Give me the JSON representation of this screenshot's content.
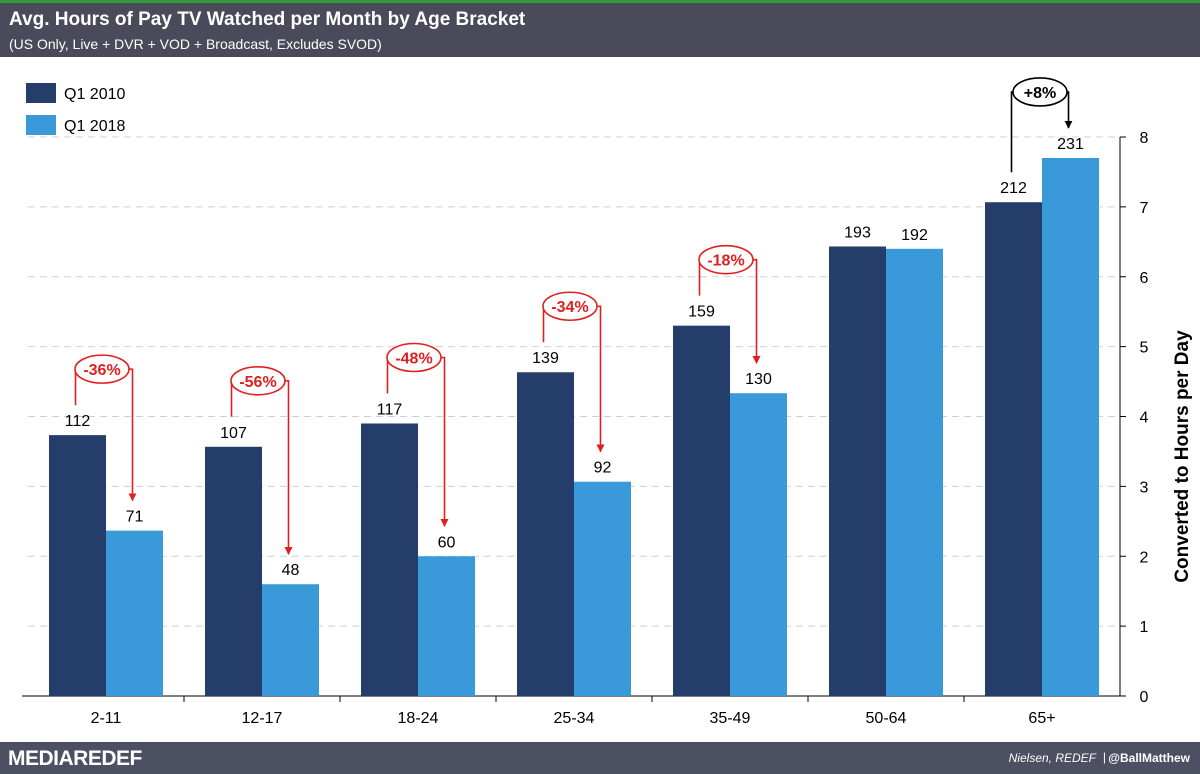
{
  "header": {
    "title": "Avg. Hours of Pay TV Watched per Month by Age Bracket",
    "subtitle": "(US Only, Live + DVR + VOD + Broadcast, Excludes SVOD)"
  },
  "footer": {
    "logo_part1": "MEDIA",
    "logo_part2": "REDEF",
    "source": "Nielsen, REDEF",
    "separator": "|",
    "handle": "@BallMatthew"
  },
  "chart_data": {
    "type": "bar",
    "title": "Avg. Hours of Pay TV Watched per Month by Age Bracket",
    "subtitle": "(US Only, Live + DVR + VOD + Broadcast, Excludes SVOD)",
    "categories": [
      "2-11",
      "12-17",
      "18-24",
      "25-34",
      "35-49",
      "50-64",
      "65+"
    ],
    "series": [
      {
        "name": "Q1 2010",
        "values": [
          112,
          107,
          117,
          139,
          159,
          193,
          212
        ],
        "color": "#243d6b"
      },
      {
        "name": "Q1 2018",
        "values": [
          71,
          48,
          60,
          92,
          130,
          192,
          231
        ],
        "color": "#3a9ad9"
      }
    ],
    "y2label": "Converted to Hours per Day",
    "y2lim": [
      0,
      8
    ],
    "y2ticks": [
      0,
      1,
      2,
      3,
      4,
      5,
      6,
      7,
      8
    ],
    "hours_per_day_divisor": 30,
    "legend_position": "top-left",
    "grid": "dashed horizontal",
    "annotations": [
      {
        "category": "2-11",
        "label": "-36%",
        "color": "#e02020"
      },
      {
        "category": "12-17",
        "label": "-56%",
        "color": "#e02020"
      },
      {
        "category": "18-24",
        "label": "-48%",
        "color": "#e02020"
      },
      {
        "category": "25-34",
        "label": "-34%",
        "color": "#e02020"
      },
      {
        "category": "35-49",
        "label": "-18%",
        "color": "#e02020"
      },
      {
        "category": "65+",
        "label": "+8%",
        "color": "#000000"
      }
    ]
  }
}
